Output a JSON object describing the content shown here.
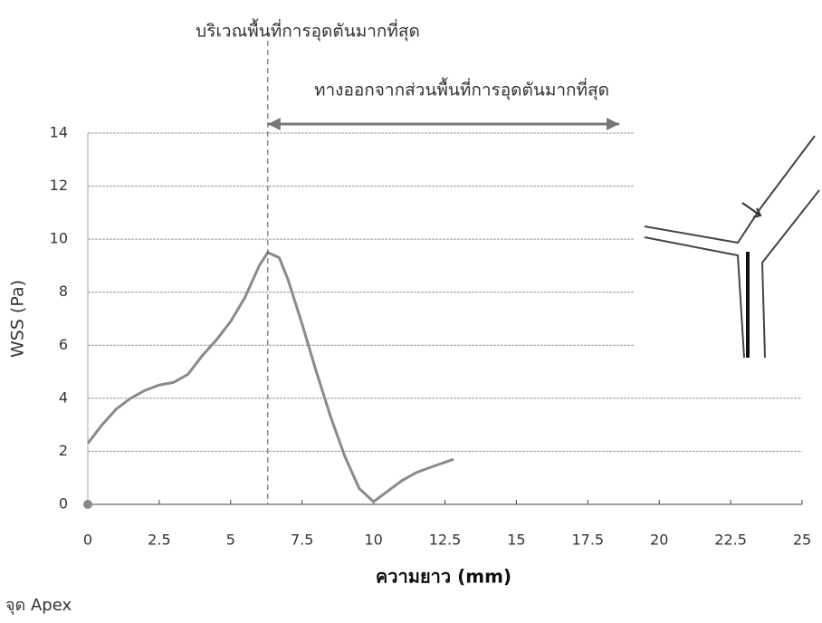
{
  "chart_data": {
    "type": "line",
    "annotations": [
      "บริเวณพื้นที่การอุดตันมากที่สุด",
      "ทางออกจากส่วนพื้นที่การอุดตันมากที่สุด"
    ],
    "marker_x": 6.3,
    "arrow_x": [
      6.3,
      18.6
    ],
    "x_label": "ความยาว (mm)",
    "y_label": "WSS (Pa)",
    "footer": "จุด Apex",
    "x": [
      0,
      0.5,
      1,
      1.5,
      2,
      2.5,
      3,
      3.5,
      4,
      4.5,
      5,
      5.5,
      6,
      6.3,
      6.7,
      7,
      7.5,
      8,
      8.5,
      9,
      9.5,
      10,
      10.5,
      11,
      11.5,
      12,
      12.8
    ],
    "series": [
      {
        "color": "#8a8a8a",
        "values": [
          2.3,
          3.0,
          3.6,
          4.0,
          4.3,
          4.5,
          4.6,
          4.9,
          5.6,
          6.2,
          6.9,
          7.8,
          9.0,
          9.5,
          9.3,
          8.5,
          6.8,
          5.0,
          3.3,
          1.8,
          0.6,
          0.1,
          0.5,
          0.9,
          1.2,
          1.4,
          1.7
        ]
      }
    ],
    "xlim": [
      0,
      25
    ],
    "xticks": [
      0,
      2.5,
      5,
      7.5,
      10,
      12.5,
      15,
      17.5,
      20,
      22.5,
      25
    ],
    "ylim": [
      0,
      14
    ],
    "yticks": [
      0,
      2,
      4,
      6,
      8,
      10,
      12,
      14
    ],
    "grid": true
  }
}
